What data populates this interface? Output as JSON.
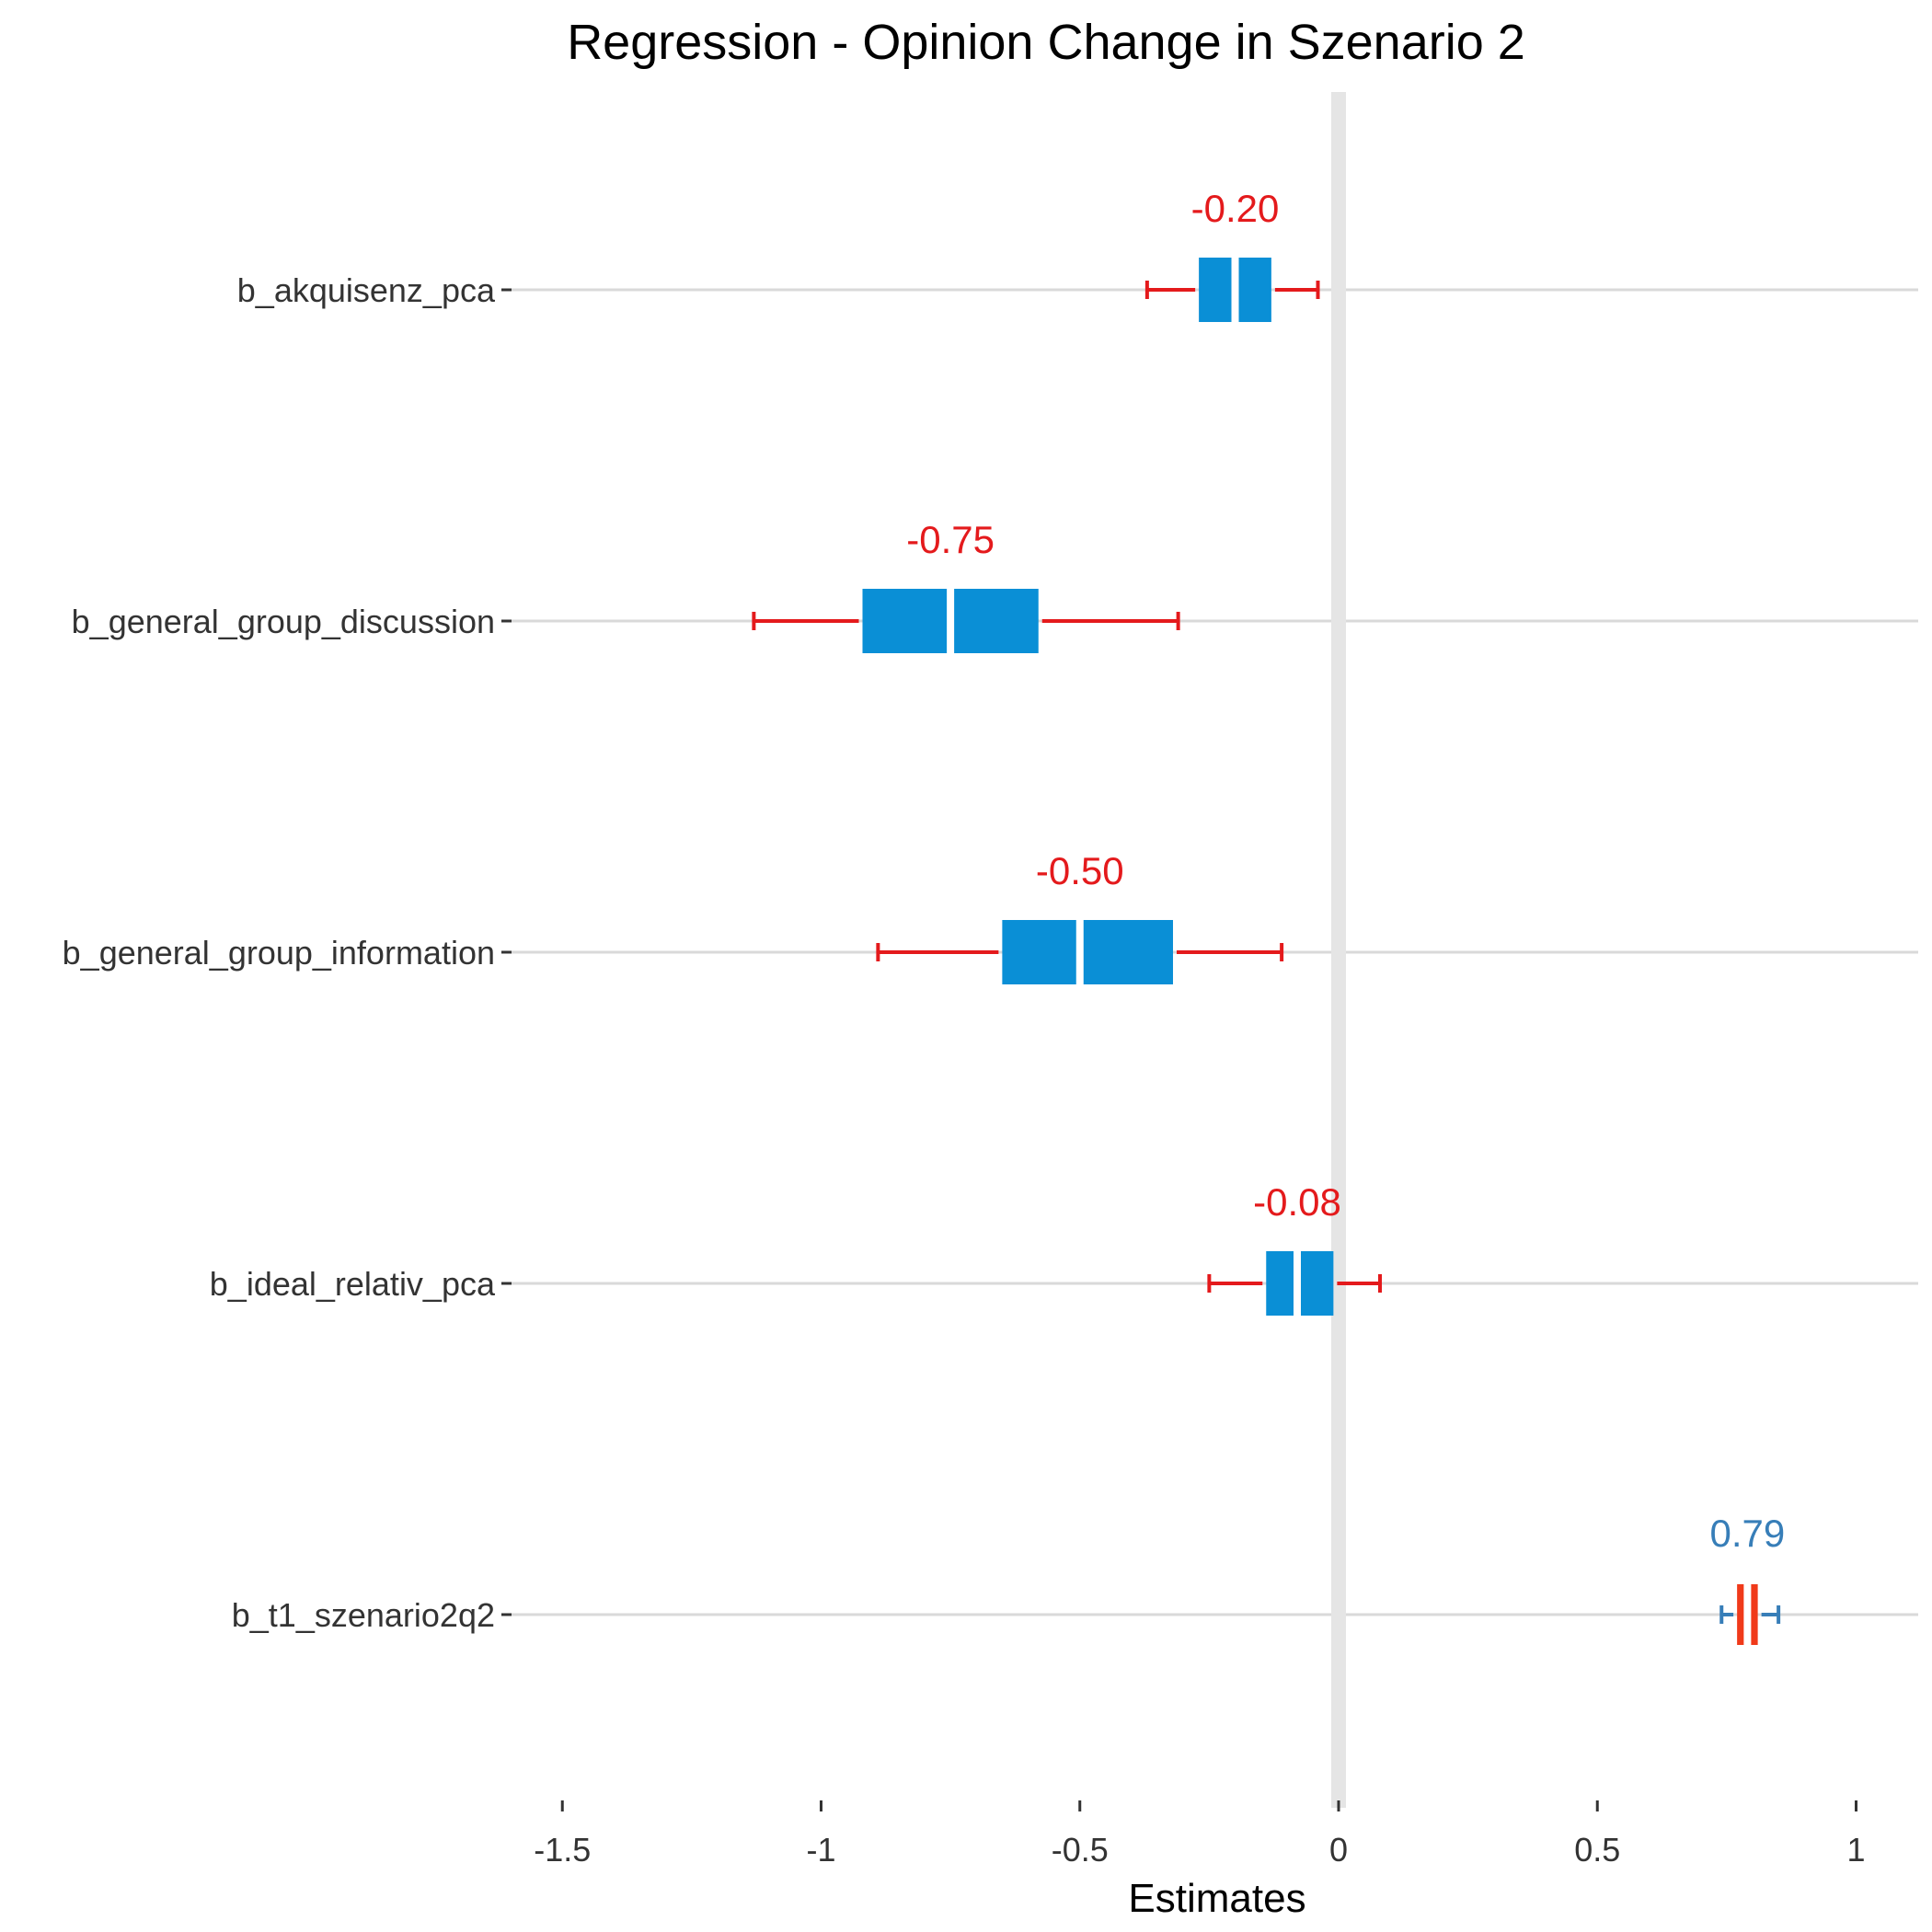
{
  "chart_data": {
    "type": "forest",
    "title": "Regression - Opinion Change in Szenario 2",
    "xlabel": "Estimates",
    "ylabel": "",
    "xlim": [
      -1.6,
      1.12
    ],
    "xticks": [
      -1.5,
      -1,
      -0.5,
      0,
      0.5,
      1
    ],
    "xtick_labels": [
      "-1.5",
      "-1",
      "-0.5",
      "0",
      "0.5",
      "1"
    ],
    "grid": "horizontal",
    "reference_line": 0,
    "colors": {
      "negative_label": "#E41A1C",
      "positive_label": "#377EB8",
      "negative_box": "#0A8FD6",
      "positive_box": "#F03A1A",
      "negative_whisker": "#E41A1C",
      "positive_whisker": "#377EB8",
      "reference": "#E5E5E5",
      "grid": "#D9D9D9"
    },
    "terms": [
      {
        "name": "b_akquisenz_pca",
        "estimate": -0.2,
        "label": "-0.20",
        "ci_inner": [
          -0.27,
          -0.13
        ],
        "ci_outer": [
          -0.37,
          -0.04
        ]
      },
      {
        "name": "b_general_group_discussion",
        "estimate": -0.75,
        "label": "-0.75",
        "ci_inner": [
          -0.92,
          -0.58
        ],
        "ci_outer": [
          -1.13,
          -0.31
        ]
      },
      {
        "name": "b_general_group_information",
        "estimate": -0.5,
        "label": "-0.50",
        "ci_inner": [
          -0.65,
          -0.32
        ],
        "ci_outer": [
          -0.89,
          -0.11
        ]
      },
      {
        "name": "b_ideal_relativ_pca",
        "estimate": -0.08,
        "label": "-0.08",
        "ci_inner": [
          -0.14,
          -0.01
        ],
        "ci_outer": [
          -0.25,
          0.08
        ]
      },
      {
        "name": "b_t1_szenario2q2",
        "estimate": 0.79,
        "label": "0.79",
        "ci_inner": [
          0.77,
          0.81
        ],
        "ci_outer": [
          0.74,
          0.85
        ]
      }
    ]
  }
}
